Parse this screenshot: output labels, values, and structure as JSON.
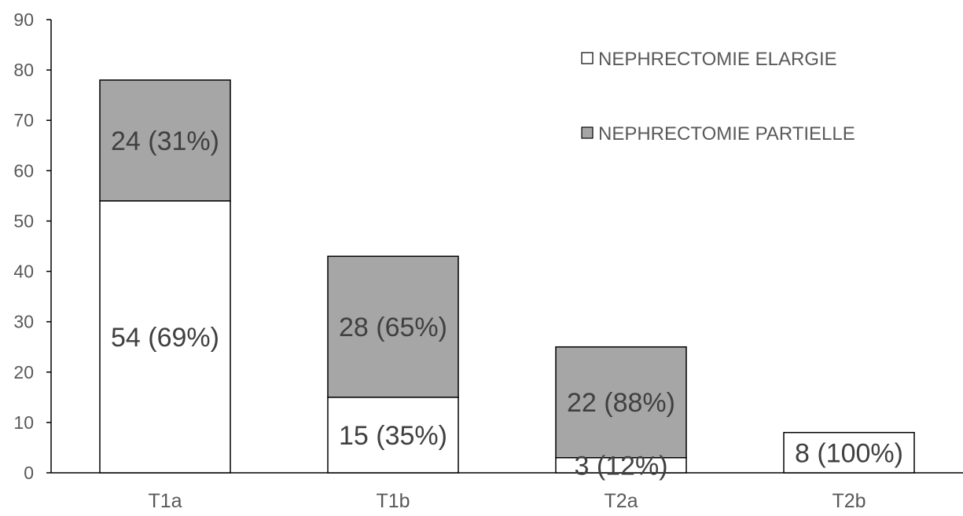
{
  "chart_data": {
    "type": "bar",
    "stacked": true,
    "categories": [
      "T1a",
      "T1b",
      "T2a",
      "T2b"
    ],
    "series": [
      {
        "name": "NEPHRECTOMIE ELARGIE",
        "color": "#ffffff",
        "values": [
          54,
          15,
          3,
          8
        ],
        "labels": [
          "54 (69%)",
          "15 (35%)",
          "3 (12%)",
          "8 (100%)"
        ]
      },
      {
        "name": "NEPHRECTOMIE PARTIELLE",
        "color": "#a6a6a6",
        "values": [
          24,
          28,
          22,
          0
        ],
        "labels": [
          "24 (31%)",
          "28 (65%)",
          "22 (88%)",
          ""
        ]
      }
    ],
    "title": "",
    "xlabel": "",
    "ylabel": "",
    "ylim": [
      0,
      90
    ],
    "yticks": [
      0,
      10,
      20,
      30,
      40,
      50,
      60,
      70,
      80,
      90
    ],
    "grid": false,
    "legend_position": "top-right",
    "bar_outline_color": "#000000",
    "axis_color": "#000000"
  }
}
